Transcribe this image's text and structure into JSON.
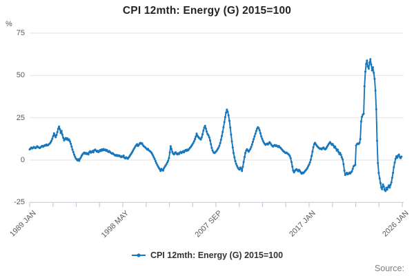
{
  "title": "CPI 12mth: Energy (G) 2015=100",
  "y_axis": {
    "unit_label": "%",
    "tick_labels": [
      "75",
      "50",
      "25",
      "0",
      "-25"
    ]
  },
  "x_axis": {
    "labels": [
      "1989 JAN",
      "1998 MAY",
      "2007 SEP",
      "2017 JAN",
      "2026 JAN"
    ],
    "minor_ticks_total": 17,
    "labeled_every_nth_tick": 4
  },
  "legend": {
    "label": "CPI 12mth: Energy (G) 2015=100"
  },
  "source": {
    "label": "Source:"
  },
  "colors": {
    "line": "#1877bc",
    "grid": "#e3e3e3",
    "axis": "#c4cde0",
    "title_text": "#232323",
    "tick_text": "#58595b",
    "legend_text": "#333333",
    "source_text": "#7f7f7f"
  },
  "chart_data": {
    "type": "line",
    "title": "CPI 12mth: Energy (G) 2015=100",
    "xlabel": "",
    "ylabel": "%",
    "ylim": [
      -25,
      75
    ],
    "y_ticks": [
      75,
      50,
      25,
      0,
      -25
    ],
    "x_tick_labels": [
      "1989 JAN",
      "1998 MAY",
      "2007 SEP",
      "2017 JAN",
      "2026 JAN"
    ],
    "grid": "horizontal-only",
    "legend_position": "bottom-center",
    "series": [
      {
        "name": "CPI 12mth: Energy (G) 2015=100",
        "frequency": "monthly",
        "start": "1989 JAN",
        "end": "2025 DEC",
        "monthly_by_year": {
          "1989": [
            6.3,
            6.8,
            7.4,
            6.9,
            7.2,
            7.8,
            7.3,
            7.0,
            7.6,
            8.2,
            7.7,
            7.4
          ],
          "1990": [
            7.1,
            7.5,
            8.0,
            8.4,
            7.9,
            8.3,
            8.8,
            8.5,
            9.2,
            8.7,
            8.9,
            9.4
          ],
          "1991": [
            9.8,
            10.5,
            11.4,
            12.6,
            14.2,
            15.8,
            14.6,
            13.5,
            14.8,
            16.5,
            18.6,
            19.8
          ],
          "1992": [
            18.2,
            16.0,
            17.2,
            15.0,
            13.2,
            11.6,
            12.4,
            13.0,
            12.2,
            12.8,
            11.8,
            12.2
          ],
          "1993": [
            11.0,
            9.6,
            8.0,
            6.2,
            4.8,
            3.2,
            2.0,
            1.0,
            0.4,
            -0.2,
            0.5,
            -0.4
          ],
          "1994": [
            0.8,
            1.6,
            2.6,
            3.4,
            4.0,
            4.4,
            3.8,
            4.2,
            3.6,
            4.0,
            3.4,
            4.6
          ],
          "1995": [
            5.2,
            4.4,
            4.8,
            5.4,
            4.6,
            5.8,
            6.2,
            5.6,
            5.0,
            5.5,
            4.7,
            5.2
          ],
          "1996": [
            6.0,
            5.4,
            6.3,
            5.7,
            6.5,
            5.9,
            6.2,
            5.5,
            6.0,
            5.2,
            4.8,
            5.3
          ],
          "1997": [
            4.6,
            4.2,
            3.8,
            4.1,
            3.5,
            3.1,
            2.7,
            3.0,
            2.5,
            2.9,
            2.4,
            2.7
          ],
          "1998": [
            2.1,
            1.7,
            2.3,
            1.9,
            2.6,
            1.4,
            1.0,
            1.6,
            1.2,
            0.8,
            1.5,
            2.2
          ],
          "1999": [
            3.0,
            3.8,
            4.6,
            5.5,
            6.4,
            7.2,
            8.1,
            8.8,
            9.4,
            8.3,
            8.9,
            9.7
          ],
          "2000": [
            10.2,
            9.6,
            9.9,
            8.8,
            8.2,
            7.8,
            7.4,
            6.8,
            6.2,
            6.6,
            5.8,
            5.4
          ],
          "2001": [
            5.0,
            4.4,
            3.6,
            2.6,
            1.6,
            0.6,
            -0.6,
            -1.8,
            -2.8,
            -3.8,
            -4.6,
            -5.4
          ],
          "2002": [
            -6.4,
            -5.2,
            -5.8,
            -6.2,
            -4.8,
            -4.0,
            -3.2,
            -2.4,
            -1.4,
            -0.4,
            1.2,
            4.5
          ],
          "2003": [
            8.2,
            6.6,
            4.8,
            3.8,
            3.4,
            4.2,
            4.6,
            3.8,
            3.4,
            4.0,
            3.6,
            4.4
          ],
          "2004": [
            4.9,
            4.2,
            4.7,
            5.3,
            4.6,
            5.5,
            6.0,
            5.4,
            6.2,
            5.8,
            6.6,
            7.2
          ],
          "2005": [
            7.8,
            8.5,
            9.3,
            10.2,
            11.2,
            12.4,
            13.8,
            15.6,
            14.4,
            13.6,
            13.0,
            12.6
          ],
          "2006": [
            12.2,
            13.4,
            15.2,
            17.4,
            19.2,
            20.2,
            18.6,
            16.8,
            15.4,
            14.6,
            13.4,
            11.6
          ],
          "2007": [
            9.4,
            7.2,
            5.6,
            4.6,
            4.2,
            4.5,
            5.0,
            5.6,
            6.4,
            7.2,
            8.4,
            10.0
          ],
          "2008": [
            12.0,
            14.2,
            16.6,
            19.4,
            22.4,
            25.4,
            28.0,
            29.8,
            28.6,
            26.4,
            23.2,
            19.2
          ],
          "2009": [
            15.0,
            11.0,
            7.4,
            4.2,
            1.6,
            -0.6,
            -2.2,
            -3.4,
            -4.4,
            -5.2,
            -5.6,
            -4.4
          ],
          "2010": [
            -5.0,
            -6.4,
            -4.0,
            -1.2,
            1.8,
            4.2,
            5.6,
            6.4,
            5.6,
            5.0,
            5.8,
            6.6
          ],
          "2011": [
            7.8,
            9.2,
            10.8,
            12.4,
            14.0,
            15.6,
            17.2,
            18.6,
            19.4,
            18.8,
            17.6,
            15.8
          ],
          "2012": [
            14.0,
            12.6,
            11.4,
            10.4,
            9.6,
            9.0,
            9.4,
            9.8,
            9.2,
            10.0,
            10.6,
            9.8
          ],
          "2013": [
            9.0,
            8.4,
            8.0,
            8.5,
            8.9,
            8.3,
            8.7,
            8.2,
            7.8,
            8.3,
            7.6,
            7.2
          ],
          "2014": [
            6.6,
            6.0,
            5.4,
            5.0,
            4.6,
            4.2,
            4.4,
            4.0,
            3.6,
            3.2,
            2.4,
            1.2
          ],
          "2015": [
            -1.2,
            -3.8,
            -6.2,
            -7.2,
            -6.4,
            -5.8,
            -5.4,
            -6.0,
            -6.6,
            -5.8,
            -6.4,
            -7.2
          ],
          "2016": [
            -8.0,
            -7.4,
            -7.8,
            -7.2,
            -6.6,
            -6.0,
            -5.4,
            -4.6,
            -3.6,
            -2.6,
            -1.4,
            0.2
          ],
          "2017": [
            2.4,
            5.0,
            7.6,
            9.4,
            10.2,
            9.4,
            8.6,
            8.0,
            7.4,
            7.0,
            6.6,
            6.9
          ],
          "2018": [
            6.4,
            6.9,
            7.4,
            6.8,
            6.3,
            6.7,
            7.5,
            8.4,
            9.2,
            10.0,
            10.6,
            9.8
          ],
          "2019": [
            9.0,
            9.5,
            8.6,
            7.4,
            8.0,
            6.8,
            5.6,
            6.2,
            4.8,
            3.6,
            4.2,
            3.0
          ],
          "2020": [
            1.6,
            0.4,
            -2.4,
            -6.2,
            -8.8,
            -8.2,
            -7.6,
            -8.4,
            -8.0,
            -7.4,
            -7.9,
            -7.2
          ],
          "2021": [
            -6.6,
            -5.2,
            -3.6,
            -3.2,
            -2.8,
            8.6,
            9.4,
            9.8,
            9.5,
            10.2,
            12.4,
            22.8
          ],
          "2022": [
            25.6,
            26.8,
            27.4,
            43.6,
            52.2,
            56.8,
            58.8,
            55.2,
            54.0,
            57.6,
            59.6,
            56.4
          ],
          "2023": [
            53.0,
            54.8,
            51.6,
            48.0,
            41.0,
            30.0,
            11.4,
            -1.8,
            -7.6,
            -10.8,
            -13.6,
            -16.2
          ],
          "2024": [
            -17.2,
            -14.4,
            -15.6,
            -17.6,
            -18.2,
            -16.4,
            -17.4,
            -16.0,
            -15.0,
            -16.2,
            -14.6,
            -13.2
          ],
          "2025": [
            -10.4,
            -7.6,
            -4.2,
            -1.4,
            0.8,
            2.2,
            1.4,
            2.6,
            3.2,
            1.8,
            1.2,
            2.0
          ]
        }
      }
    ]
  }
}
